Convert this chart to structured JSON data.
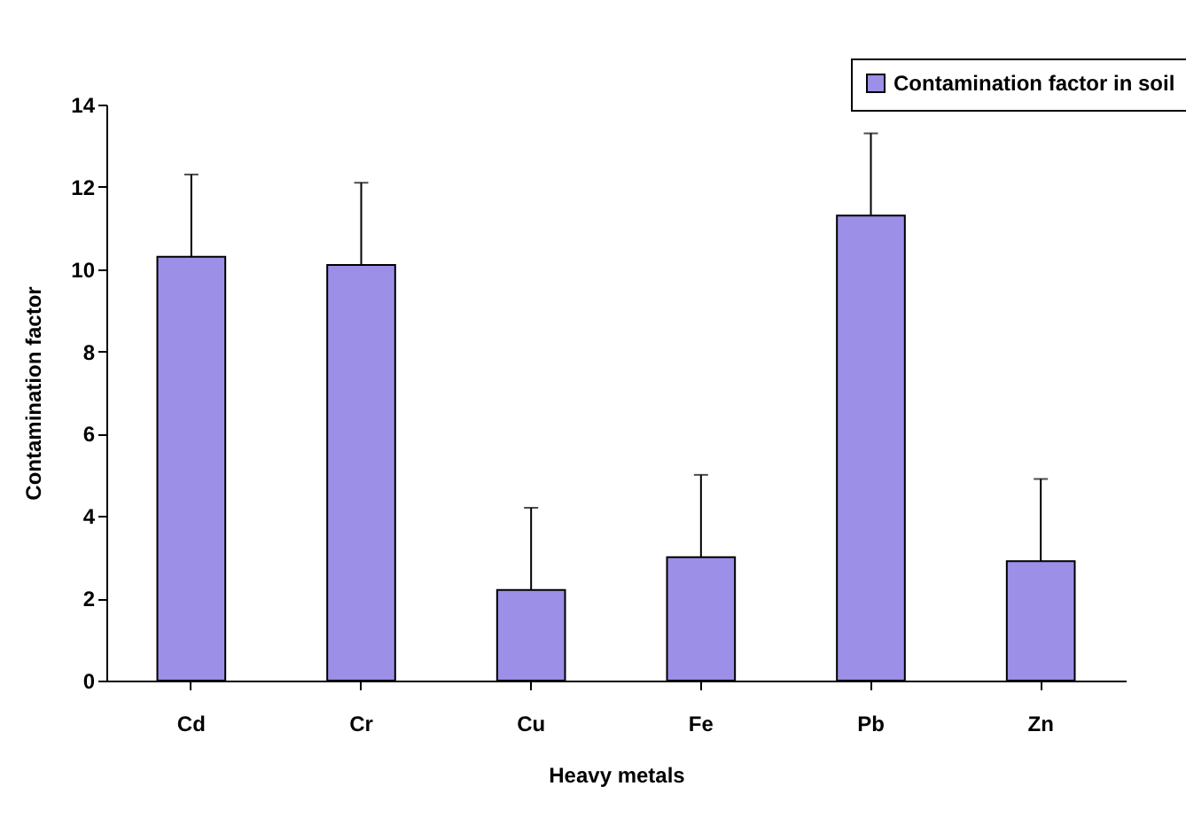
{
  "chart_data": {
    "type": "bar",
    "xlabel": "Heavy metals",
    "ylabel": "Contamination factor",
    "categories": [
      "Cd",
      "Cr",
      "Cu",
      "Fe",
      "Pb",
      "Zn"
    ],
    "series": [
      {
        "name": "Contamination factor in soil",
        "color": "#9b8fe8",
        "values": [
          10.3,
          10.1,
          2.2,
          3.0,
          11.3,
          2.9
        ],
        "errors": [
          [
            10.3,
            12.3
          ],
          [
            10.1,
            12.1
          ],
          [
            2.2,
            4.2
          ],
          [
            3.0,
            5.0
          ],
          [
            11.3,
            13.3
          ],
          [
            2.9,
            4.9
          ]
        ]
      }
    ],
    "ylim": [
      0,
      14
    ],
    "yticks": [
      0,
      2,
      4,
      6,
      8,
      10,
      12,
      14
    ],
    "grid": false,
    "legend": "top right"
  }
}
